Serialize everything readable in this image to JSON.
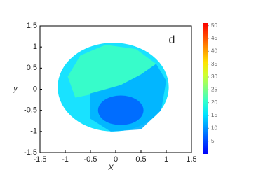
{
  "chart_data": {
    "type": "heatmap",
    "annotation": "d",
    "xlabel": "X",
    "ylabel": "y",
    "xlim": [
      -1.5,
      1.5
    ],
    "xticks": [
      -1.5,
      -1,
      -0.5,
      0,
      0.5,
      1,
      1.5
    ],
    "ylim": [
      -1.5,
      1.5
    ],
    "yticks": [
      -1.5,
      -1,
      -0.5,
      0,
      0.5,
      1,
      1.5
    ],
    "values": [
      15,
      21,
      12,
      7
    ],
    "clim": [
      0,
      51
    ],
    "cticks": [
      5,
      10,
      15,
      20,
      25,
      30,
      35,
      40,
      45,
      50
    ],
    "colormap": "jet"
  }
}
